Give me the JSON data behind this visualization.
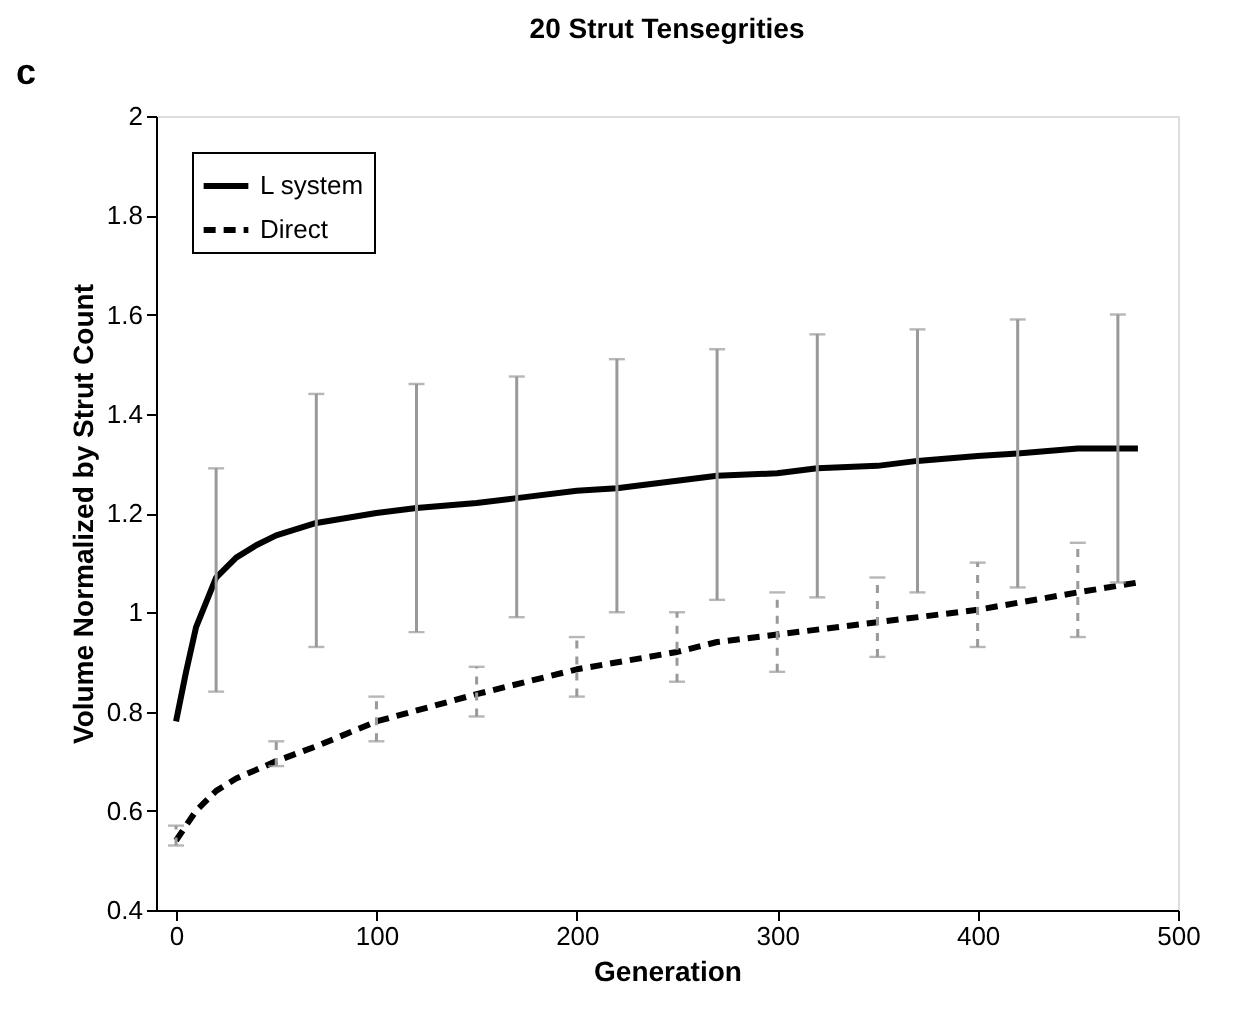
{
  "chart_data": {
    "type": "line",
    "title": "20 Strut Tensegrities",
    "xlabel": "Generation",
    "ylabel": "Volume Normalized by Strut Count",
    "annotations": [
      "c"
    ],
    "xlim": [
      -10,
      500
    ],
    "xticks": [
      0,
      100,
      200,
      300,
      400,
      500
    ],
    "ylim": [
      0.4,
      2
    ],
    "yticks": [
      0.4,
      0.6,
      0.8,
      1,
      1.2,
      1.4,
      1.6,
      1.8,
      2
    ],
    "grid": false,
    "legend": "top left",
    "marker": "none",
    "series": [
      {
        "name": "L system",
        "color": "#000000",
        "line_style": "solid",
        "x": [
          0,
          5,
          10,
          20,
          30,
          40,
          50,
          70,
          100,
          120,
          150,
          170,
          200,
          220,
          250,
          270,
          300,
          320,
          350,
          370,
          400,
          420,
          450,
          470,
          480
        ],
        "values": [
          0.78,
          0.88,
          0.97,
          1.07,
          1.11,
          1.135,
          1.155,
          1.18,
          1.2,
          1.21,
          1.22,
          1.23,
          1.245,
          1.25,
          1.265,
          1.275,
          1.28,
          1.29,
          1.295,
          1.305,
          1.315,
          1.32,
          1.33,
          1.33,
          1.33
        ],
        "errors": [
          null,
          null,
          null,
          [
            0.84,
            1.29
          ],
          null,
          null,
          null,
          [
            0.93,
            1.44
          ],
          null,
          [
            0.96,
            1.46
          ],
          null,
          [
            0.99,
            1.475
          ],
          null,
          [
            1.0,
            1.51
          ],
          null,
          [
            1.025,
            1.53
          ],
          null,
          [
            1.03,
            1.56
          ],
          null,
          [
            1.04,
            1.57
          ],
          null,
          [
            1.05,
            1.59
          ],
          null,
          [
            1.06,
            1.6
          ],
          null
        ]
      },
      {
        "name": "Direct",
        "color": "#000000",
        "line_style": "dashed",
        "x": [
          0,
          10,
          20,
          30,
          50,
          70,
          100,
          150,
          200,
          250,
          270,
          300,
          350,
          400,
          450,
          480
        ],
        "values": [
          0.54,
          0.6,
          0.64,
          0.665,
          0.7,
          0.73,
          0.78,
          0.835,
          0.885,
          0.92,
          0.94,
          0.955,
          0.98,
          1.005,
          1.04,
          1.06
        ],
        "errors": [
          [
            0.53,
            0.57
          ],
          null,
          null,
          null,
          [
            0.69,
            0.74
          ],
          null,
          [
            0.74,
            0.83
          ],
          [
            0.79,
            0.89
          ],
          [
            0.83,
            0.95
          ],
          [
            0.86,
            1.0
          ],
          null,
          [
            0.88,
            1.04
          ],
          [
            0.91,
            1.07
          ],
          [
            0.93,
            1.1
          ],
          [
            0.95,
            1.14
          ],
          null
        ]
      }
    ]
  }
}
